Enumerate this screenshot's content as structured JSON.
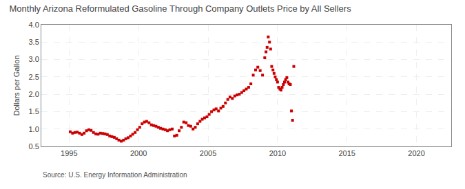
{
  "chart_data": {
    "type": "scatter",
    "title": "Monthly Arizona Reformulated Gasoline Through Company Outlets Price by All Sellers",
    "ylabel": "Dollars per Gallon",
    "source": "Source: U.S. Energy Information Administration",
    "color": "#cc0000",
    "marker": "square",
    "grid": true,
    "xlim": [
      1993.0,
      2022.5
    ],
    "ylim": [
      0.5,
      4.0
    ],
    "xticks": [
      1995,
      2000,
      2005,
      2010,
      2015,
      2020
    ],
    "yticks": [
      0.5,
      {
        "value": 1.0,
        "label": "1.0"
      },
      1.5,
      {
        "value": 2.0,
        "label": "2.0"
      },
      2.5,
      {
        "value": 3.0,
        "label": "3.0"
      },
      3.5,
      {
        "value": 4.0,
        "label": "4.0"
      }
    ],
    "x": [
      1995.08,
      1995.25,
      1995.42,
      1995.58,
      1995.75,
      1995.92,
      1996.08,
      1996.25,
      1996.42,
      1996.58,
      1996.75,
      1996.92,
      1997.08,
      1997.25,
      1997.42,
      1997.58,
      1997.75,
      1997.92,
      1998.08,
      1998.25,
      1998.42,
      1998.58,
      1998.75,
      1998.92,
      1999.08,
      1999.25,
      1999.42,
      1999.58,
      1999.75,
      1999.92,
      2000.08,
      2000.25,
      2000.42,
      2000.58,
      2000.75,
      2000.92,
      2001.08,
      2001.25,
      2001.42,
      2001.58,
      2001.75,
      2001.92,
      2002.08,
      2002.25,
      2002.42,
      2002.58,
      2002.75,
      2002.92,
      2003.08,
      2003.25,
      2003.42,
      2003.58,
      2003.75,
      2003.92,
      2004.08,
      2004.25,
      2004.42,
      2004.58,
      2004.75,
      2004.92,
      2005.08,
      2005.25,
      2005.42,
      2005.58,
      2005.75,
      2005.92,
      2006.08,
      2006.25,
      2006.42,
      2006.58,
      2006.75,
      2006.92,
      2007.08,
      2007.25,
      2007.42,
      2007.58,
      2007.75,
      2007.92,
      2008.08,
      2008.25,
      2008.42,
      2008.58,
      2008.75,
      2008.92,
      2009.08,
      2009.17,
      2009.25,
      2009.33,
      2009.42,
      2009.5,
      2009.58,
      2009.67,
      2009.75,
      2009.83,
      2009.92,
      2010.0,
      2010.08,
      2010.17,
      2010.25,
      2010.33,
      2010.42,
      2010.5,
      2010.58,
      2010.67,
      2010.75,
      2010.83,
      2010.92,
      2011.0,
      2011.08,
      2011.17
    ],
    "values": [
      0.92,
      0.88,
      0.9,
      0.91,
      0.88,
      0.84,
      0.88,
      0.95,
      0.98,
      0.96,
      0.9,
      0.86,
      0.85,
      0.88,
      0.87,
      0.86,
      0.84,
      0.8,
      0.78,
      0.76,
      0.72,
      0.68,
      0.65,
      0.68,
      0.72,
      0.75,
      0.8,
      0.85,
      0.9,
      0.98,
      1.05,
      1.15,
      1.2,
      1.22,
      1.18,
      1.12,
      1.1,
      1.08,
      1.05,
      1.02,
      1.0,
      0.98,
      0.95,
      0.98,
      1.0,
      0.8,
      0.82,
      0.95,
      1.05,
      1.2,
      1.18,
      1.1,
      1.08,
      1.0,
      1.05,
      1.15,
      1.22,
      1.28,
      1.32,
      1.35,
      1.42,
      1.5,
      1.55,
      1.58,
      1.52,
      1.6,
      1.65,
      1.75,
      1.85,
      1.92,
      1.88,
      1.95,
      1.98,
      2.0,
      2.05,
      2.1,
      2.15,
      2.2,
      2.3,
      2.55,
      2.7,
      2.78,
      2.68,
      2.55,
      3.05,
      3.22,
      3.35,
      3.65,
      3.5,
      3.3,
      2.8,
      2.7,
      2.6,
      2.5,
      2.42,
      2.35,
      2.2,
      2.15,
      2.12,
      2.2,
      2.28,
      2.35,
      2.42,
      2.48,
      2.35,
      2.3,
      2.28,
      1.52,
      1.25,
      2.8
    ]
  }
}
